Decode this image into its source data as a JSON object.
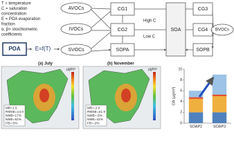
{
  "legend": [
    "T = temperature",
    "C = saturation",
    "concentration",
    "E = POA evaporation",
    "fraction",
    "α, β= stoichiometric",
    "coefficients"
  ],
  "nodes": {
    "poa": "POA",
    "ef": "E=f(T)",
    "avocs": "AVOCs",
    "ivocs": "IVOCs",
    "svocs": "SVOCs",
    "cg1": "CG1",
    "cg2": "CG2",
    "sopa": "SOPA",
    "soa": "SOA",
    "cg3": "CG3",
    "cg4": "CG4",
    "sopb": "SOPB",
    "bvocs": "BVOCs"
  },
  "volatility": {
    "high": "High C",
    "low": "Low C"
  },
  "panels": [
    "(a) July",
    "(b) November"
  ],
  "maps": [
    {
      "unit": "μg/m³",
      "stats": [
        "MB=1.5",
        "RMSE=14.0",
        "NMB=17%",
        "NME=51%",
        "FB=-5%"
      ]
    },
    {
      "unit": "μg/m³",
      "stats": [
        "MB=-2.0",
        "RMSE=21.9",
        "NMB=-5%",
        "NME=41%",
        "FB=-2%"
      ]
    }
  ],
  "chart_data": {
    "type": "bar",
    "y_label": "OA (μg/m³)",
    "categories": [
      "SOAP2",
      "SOAP3"
    ],
    "series": [
      {
        "color": "#4f81bd",
        "values": [
          2.0,
          2.0
        ]
      },
      {
        "color": "#f0b040",
        "values": [
          2.5,
          3.0
        ]
      },
      {
        "color": "#e05030",
        "values": [
          0.3,
          0.3
        ]
      },
      {
        "color": "#9dc3e6",
        "values": [
          1.2,
          3.7
        ]
      }
    ],
    "ylim": [
      0,
      10
    ],
    "yticks": [
      0,
      2,
      4,
      6,
      8,
      10
    ]
  }
}
